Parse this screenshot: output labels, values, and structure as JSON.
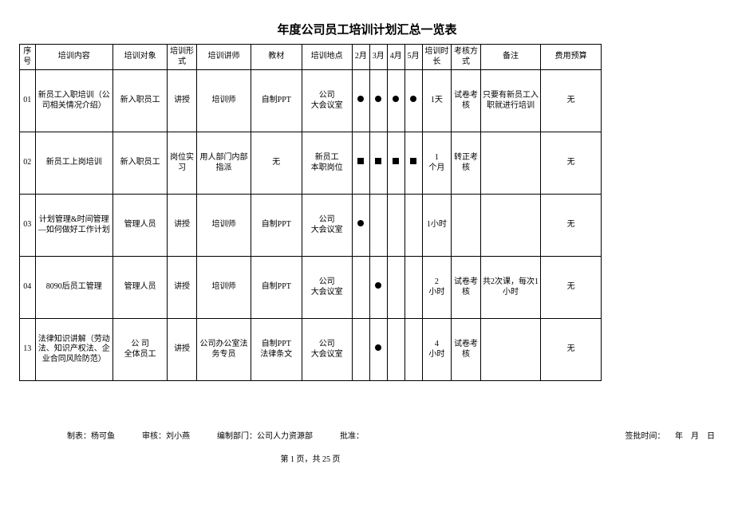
{
  "title": "年度公司员工培训计划汇总一览表",
  "columns": [
    "序号",
    "培训内容",
    "培训对象",
    "培训形式",
    "培训讲师",
    "教材",
    "培训地点",
    "2月",
    "3月",
    "4月",
    "5月",
    "培训时长",
    "考核方式",
    "备注",
    "费用预算"
  ],
  "rows": [
    {
      "seq": "01",
      "content": "新员工入职培训（公司相关情况介绍）",
      "target": "新入职员工",
      "form": "讲授",
      "teacher": "培训师",
      "material": "自制PPT",
      "place": "公司\n大会议室",
      "months": [
        "round",
        "round",
        "round",
        "round"
      ],
      "dur": "1天",
      "assess": "试卷考核",
      "remark": "只要有新员工入职就进行培训",
      "budget": "无"
    },
    {
      "seq": "02",
      "content": "新员工上岗培训",
      "target": "新入职员工",
      "form": "岗位实习",
      "teacher": "用人部门内部指派",
      "material": "无",
      "place": "新员工\n本职岗位",
      "months": [
        "square",
        "square",
        "square",
        "square"
      ],
      "dur": "1\n个月",
      "assess": "转正考核",
      "remark": "",
      "budget": "无"
    },
    {
      "seq": "03",
      "content": "计划管理&时间管理—如何做好工作计划",
      "target": "管理人员",
      "form": "讲授",
      "teacher": "培训师",
      "material": "自制PPT",
      "place": "公司\n大会议室",
      "months": [
        "round",
        "",
        "",
        ""
      ],
      "dur": "1小时",
      "assess": "",
      "remark": "",
      "budget": "无"
    },
    {
      "seq": "04",
      "content": "8090后员工管理",
      "target": "管理人员",
      "form": "讲授",
      "teacher": "培训师",
      "material": "自制PPT",
      "place": "公司\n大会议室",
      "months": [
        "",
        "round",
        "",
        ""
      ],
      "dur": "2\n小时",
      "assess": "试卷考核",
      "remark": "共2次课，每次1小时",
      "budget": "无"
    },
    {
      "seq": "13",
      "content": "法律知识讲解（劳动法、知识产权法、企业合同风险防范）",
      "target": "公 司\n全体员工",
      "form": "讲授",
      "teacher": "公司办公室法务专员",
      "material": "自制PPT\n法律条文",
      "place": "公司\n大会议室",
      "months": [
        "",
        "round",
        "",
        ""
      ],
      "dur": "4\n小时",
      "assess": "试卷考核",
      "remark": "",
      "budget": "无"
    }
  ],
  "footer": {
    "maker_label": "制表：",
    "maker": "杨可鱼",
    "reviewer_label": "审核：",
    "reviewer": "刘小燕",
    "dept_label": "编制部门：",
    "dept": "公司人力资源部",
    "approve_label": "批准：",
    "signtime_label": "签批时间：",
    "date_suffix": "年　月　日"
  },
  "page": "第 1 页，共 25 页",
  "layout": {
    "col_classes": [
      "col-seq",
      "col-content",
      "col-target",
      "col-form",
      "col-teacher",
      "col-material",
      "col-place",
      "col-month",
      "col-month",
      "col-month",
      "col-month",
      "col-dur",
      "col-assess",
      "col-remark",
      "col-budget"
    ]
  }
}
